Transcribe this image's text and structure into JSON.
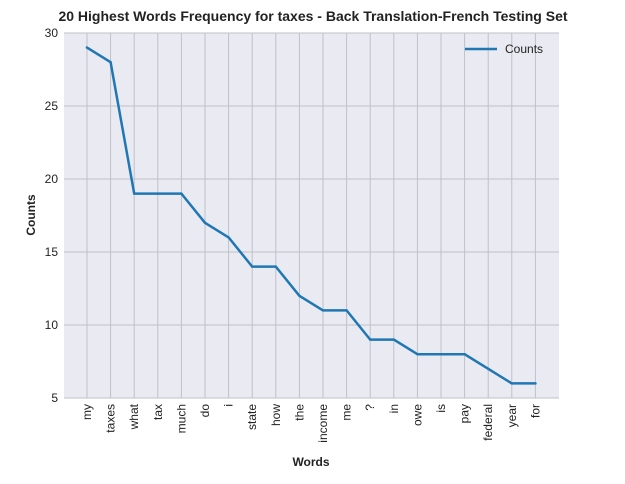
{
  "chart_data": {
    "type": "line",
    "title": "20 Highest Words Frequency for taxes - Back Translation-French Testing Set",
    "xlabel": "Words",
    "ylabel": "Counts",
    "categories": [
      "my",
      "taxes",
      "what",
      "tax",
      "much",
      "do",
      "i",
      "state",
      "how",
      "the",
      "income",
      "me",
      "?",
      "in",
      "owe",
      "is",
      "pay",
      "federal",
      "year",
      "for"
    ],
    "series": [
      {
        "name": "Counts",
        "color": "#1f77b4",
        "values": [
          29,
          28,
          19,
          19,
          19,
          17,
          16,
          14,
          14,
          12,
          11,
          11,
          9,
          9,
          8,
          8,
          8,
          7,
          6,
          6
        ]
      }
    ],
    "ylim": [
      5,
      30
    ],
    "yticks": [
      5,
      10,
      15,
      20,
      25,
      30
    ],
    "grid": true,
    "legend_position": "top-right",
    "background_color": "#eaeaf2",
    "grid_color": "#c0c0c8"
  }
}
